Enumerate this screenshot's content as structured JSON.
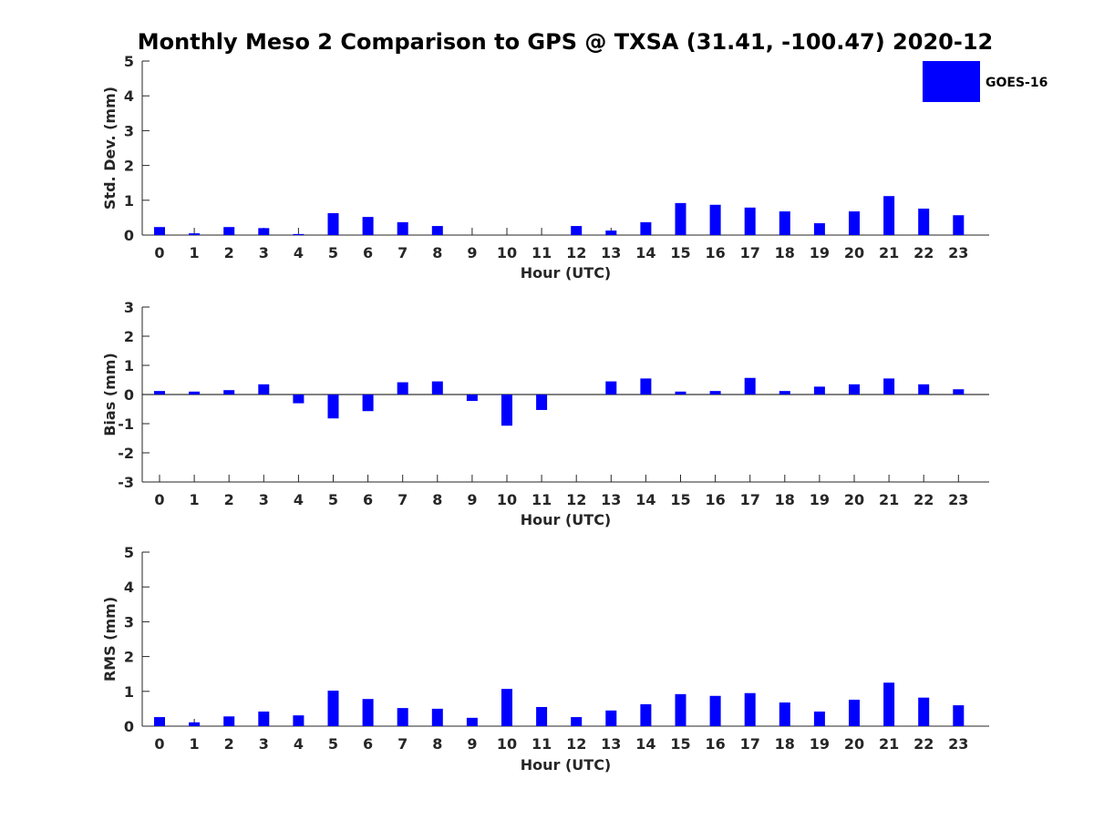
{
  "title": "Monthly Meso 2 Comparison to GPS @ TXSA (31.41, -100.47) 2020-12",
  "bar_color": "#0000ff",
  "chart_data": [
    {
      "type": "bar",
      "name": "std",
      "categories": [
        "0",
        "1",
        "2",
        "3",
        "4",
        "5",
        "6",
        "7",
        "8",
        "9",
        "10",
        "11",
        "12",
        "13",
        "14",
        "15",
        "16",
        "17",
        "18",
        "19",
        "20",
        "21",
        "22",
        "23"
      ],
      "series": [
        {
          "name": "GOES-16",
          "values": [
            0.23,
            0.05,
            0.23,
            0.2,
            0.03,
            0.63,
            0.52,
            0.37,
            0.26,
            0,
            0,
            0,
            0.26,
            0.13,
            0.37,
            0.92,
            0.87,
            0.79,
            0.68,
            0.34,
            0.68,
            1.12,
            0.76,
            0.57
          ]
        }
      ],
      "xlabel": "Hour (UTC)",
      "ylabel": "Std. Dev. (mm)",
      "ylim": [
        0,
        5
      ],
      "yticks": [
        "0",
        "1",
        "2",
        "3",
        "4",
        "5"
      ],
      "legend": "top-right"
    },
    {
      "type": "bar",
      "name": "bias",
      "categories": [
        "0",
        "1",
        "2",
        "3",
        "4",
        "5",
        "6",
        "7",
        "8",
        "9",
        "10",
        "11",
        "12",
        "13",
        "14",
        "15",
        "16",
        "17",
        "18",
        "19",
        "20",
        "21",
        "22",
        "23"
      ],
      "series": [
        {
          "name": "GOES-16",
          "values": [
            0.12,
            0.1,
            0.15,
            0.35,
            -0.3,
            -0.82,
            -0.57,
            0.42,
            0.45,
            -0.22,
            -1.07,
            -0.53,
            0,
            0.45,
            0.55,
            0.1,
            0.12,
            0.57,
            0.12,
            0.27,
            0.35,
            0.55,
            0.35,
            0.18
          ]
        }
      ],
      "xlabel": "Hour (UTC)",
      "ylabel": "Bias (mm)",
      "ylim": [
        -3,
        3
      ],
      "yticks": [
        "-3",
        "-2",
        "-1",
        "0",
        "1",
        "2",
        "3"
      ]
    },
    {
      "type": "bar",
      "name": "rms",
      "categories": [
        "0",
        "1",
        "2",
        "3",
        "4",
        "5",
        "6",
        "7",
        "8",
        "9",
        "10",
        "11",
        "12",
        "13",
        "14",
        "15",
        "16",
        "17",
        "18",
        "19",
        "20",
        "21",
        "22",
        "23"
      ],
      "series": [
        {
          "name": "GOES-16",
          "values": [
            0.26,
            0.11,
            0.28,
            0.42,
            0.31,
            1.02,
            0.78,
            0.52,
            0.5,
            0.24,
            1.07,
            0.55,
            0.26,
            0.45,
            0.63,
            0.92,
            0.87,
            0.95,
            0.68,
            0.42,
            0.76,
            1.25,
            0.82,
            0.6
          ]
        }
      ],
      "xlabel": "Hour (UTC)",
      "ylabel": "RMS (mm)",
      "ylim": [
        0,
        5
      ],
      "yticks": [
        "0",
        "1",
        "2",
        "3",
        "4",
        "5"
      ]
    }
  ]
}
